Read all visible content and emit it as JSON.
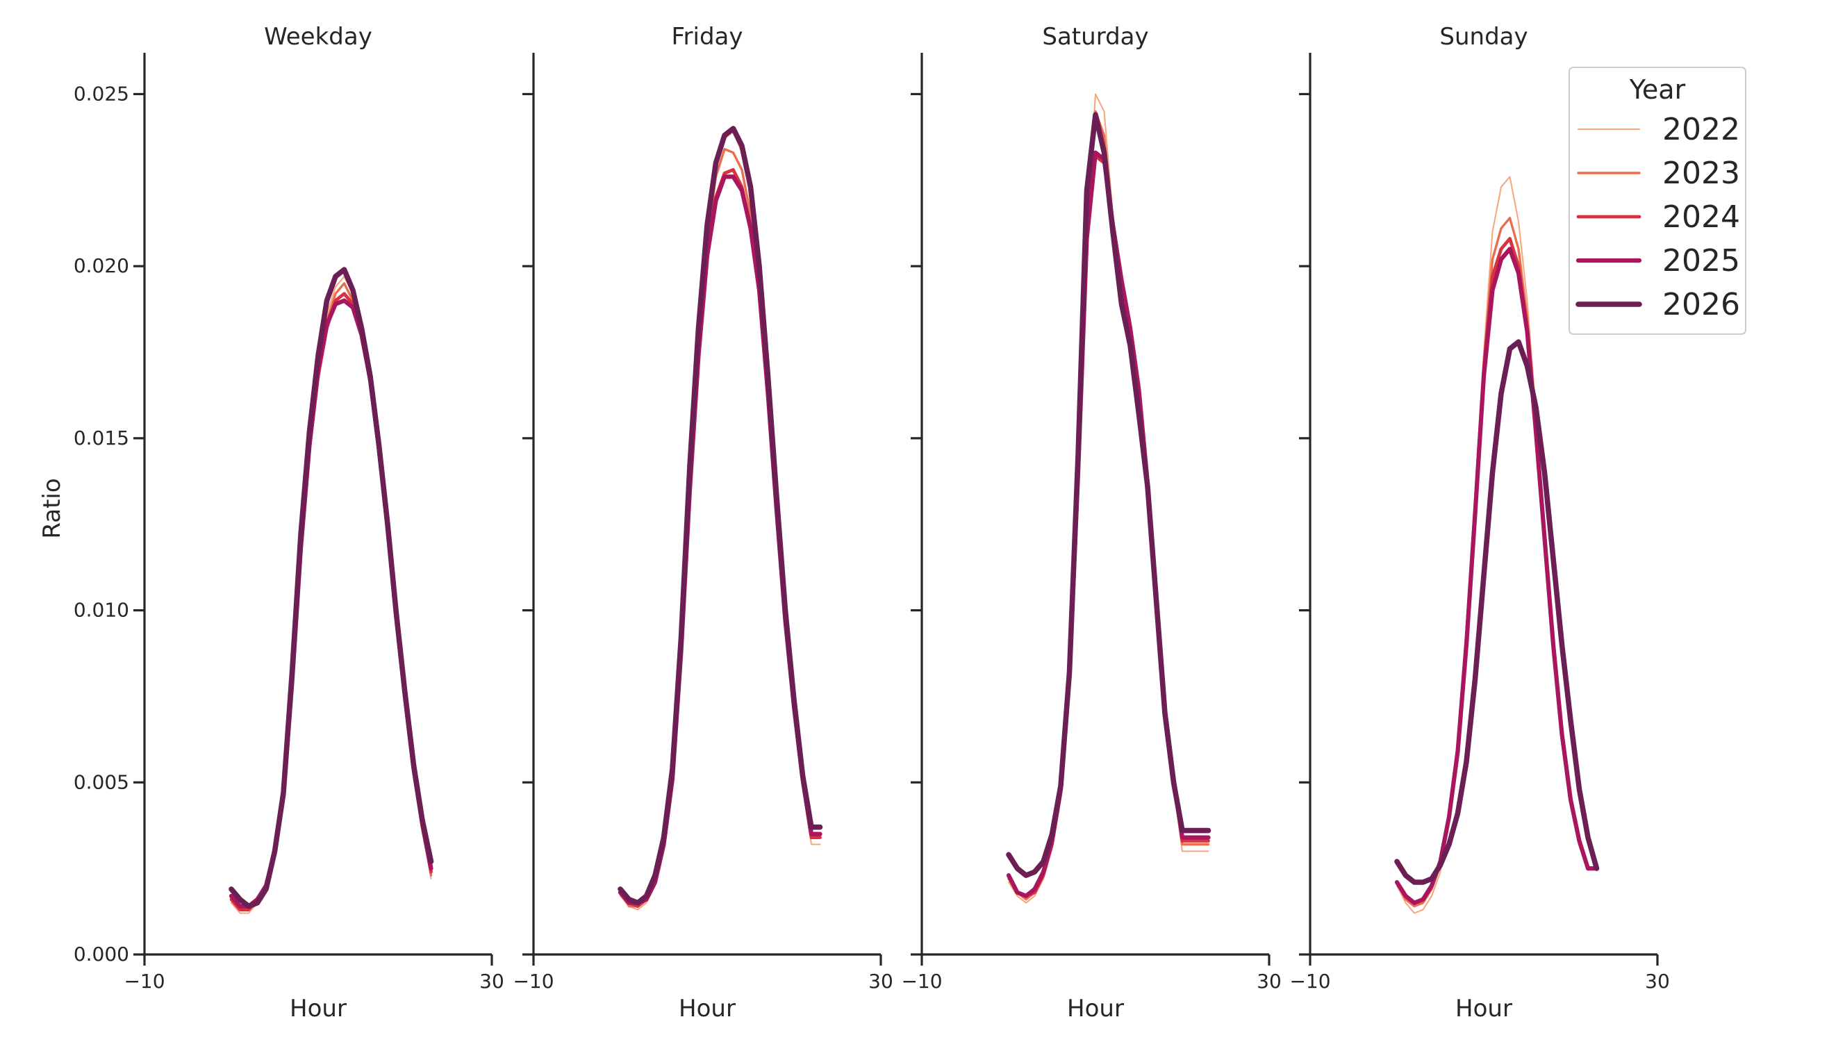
{
  "chart_data": {
    "type": "line",
    "ylabel": "Ratio",
    "xlabel": "Hour",
    "xlim": [
      -10,
      30
    ],
    "ylim": [
      0,
      0.0262
    ],
    "xticks": [
      "−10",
      "30"
    ],
    "yticks": [
      "0.000",
      "0.005",
      "0.010",
      "0.015",
      "0.020",
      "0.025"
    ],
    "legend": {
      "title": "Year",
      "placement": "top-right of last panel"
    },
    "series_styles": [
      {
        "name": "2022",
        "color": "#f6a47c"
      },
      {
        "name": "2023",
        "color": "#ec6d4b"
      },
      {
        "name": "2024",
        "color": "#d9323f"
      },
      {
        "name": "2025",
        "color": "#a9165e"
      },
      {
        "name": "2026",
        "color": "#6b1f54"
      }
    ],
    "x": [
      0,
      1,
      2,
      3,
      4,
      5,
      6,
      7,
      8,
      9,
      10,
      11,
      12,
      13,
      14,
      15,
      16,
      17,
      18,
      19,
      20,
      21,
      22,
      23
    ],
    "panels": [
      {
        "title": "Weekday",
        "series": [
          {
            "name": "2022",
            "values": [
              0.0015,
              0.0012,
              0.0012,
              0.0015,
              0.002,
              0.003,
              0.0047,
              0.008,
              0.012,
              0.015,
              0.0172,
              0.0186,
              0.0194,
              0.0197,
              0.0192,
              0.0182,
              0.0168,
              0.0148,
              0.0125,
              0.0098,
              0.0075,
              0.0053,
              0.0037,
              0.0022
            ]
          },
          {
            "name": "2023",
            "values": [
              0.0016,
              0.0013,
              0.0013,
              0.0016,
              0.002,
              0.0031,
              0.0047,
              0.0079,
              0.0118,
              0.0148,
              0.017,
              0.0184,
              0.0192,
              0.0195,
              0.019,
              0.0181,
              0.0167,
              0.0147,
              0.0124,
              0.0097,
              0.0074,
              0.0053,
              0.0037,
              0.0023
            ]
          },
          {
            "name": "2024",
            "values": [
              0.0016,
              0.0013,
              0.0013,
              0.0016,
              0.002,
              0.003,
              0.0046,
              0.0078,
              0.0117,
              0.0147,
              0.0168,
              0.0182,
              0.019,
              0.0192,
              0.0189,
              0.018,
              0.0166,
              0.0146,
              0.0123,
              0.0097,
              0.0074,
              0.0053,
              0.0037,
              0.0024
            ]
          },
          {
            "name": "2025",
            "values": [
              0.0017,
              0.0014,
              0.0014,
              0.0016,
              0.002,
              0.003,
              0.0046,
              0.0079,
              0.0118,
              0.0148,
              0.017,
              0.0183,
              0.0189,
              0.019,
              0.0188,
              0.018,
              0.0167,
              0.0147,
              0.0124,
              0.0098,
              0.0075,
              0.0054,
              0.0038,
              0.0025
            ]
          },
          {
            "name": "2026",
            "values": [
              0.0019,
              0.0016,
              0.0014,
              0.0015,
              0.0019,
              0.003,
              0.0047,
              0.0082,
              0.0122,
              0.0152,
              0.0174,
              0.019,
              0.0197,
              0.0199,
              0.0193,
              0.0182,
              0.0168,
              0.0148,
              0.0125,
              0.0099,
              0.0076,
              0.0055,
              0.0039,
              0.0027
            ]
          }
        ]
      },
      {
        "title": "Friday",
        "series": [
          {
            "name": "2022",
            "values": [
              0.0017,
              0.0014,
              0.0013,
              0.0015,
              0.002,
              0.0032,
              0.0052,
              0.009,
              0.014,
              0.018,
              0.021,
              0.0228,
              0.0237,
              0.0239,
              0.0233,
              0.022,
              0.0198,
              0.0165,
              0.013,
              0.0098,
              0.0072,
              0.005,
              0.0032,
              0.0032
            ]
          },
          {
            "name": "2023",
            "values": [
              0.0018,
              0.0014,
              0.0014,
              0.0016,
              0.0021,
              0.0032,
              0.0051,
              0.0089,
              0.0138,
              0.0178,
              0.0208,
              0.0226,
              0.0234,
              0.0233,
              0.0228,
              0.0215,
              0.0195,
              0.0163,
              0.0129,
              0.0097,
              0.0072,
              0.005,
              0.0034,
              0.0034
            ]
          },
          {
            "name": "2024",
            "values": [
              0.0018,
              0.0015,
              0.0014,
              0.0016,
              0.0021,
              0.0032,
              0.0051,
              0.0088,
              0.0136,
              0.0175,
              0.0205,
              0.022,
              0.0227,
              0.0228,
              0.0223,
              0.0211,
              0.0193,
              0.0162,
              0.0128,
              0.0096,
              0.0071,
              0.005,
              0.0034,
              0.0034
            ]
          },
          {
            "name": "2025",
            "values": [
              0.0018,
              0.0015,
              0.0015,
              0.0016,
              0.0021,
              0.0032,
              0.0051,
              0.0088,
              0.0135,
              0.0174,
              0.0203,
              0.0219,
              0.0226,
              0.0226,
              0.0222,
              0.0211,
              0.0193,
              0.0163,
              0.0129,
              0.0097,
              0.0072,
              0.0051,
              0.0035,
              0.0035
            ]
          },
          {
            "name": "2026",
            "values": [
              0.0019,
              0.0016,
              0.0015,
              0.0017,
              0.0023,
              0.0034,
              0.0054,
              0.0092,
              0.0142,
              0.0182,
              0.0212,
              0.023,
              0.0238,
              0.024,
              0.0235,
              0.0223,
              0.02,
              0.0168,
              0.0133,
              0.01,
              0.0074,
              0.0052,
              0.0037,
              0.0037
            ]
          }
        ]
      },
      {
        "title": "Saturday",
        "series": [
          {
            "name": "2022",
            "values": [
              0.0021,
              0.0017,
              0.0015,
              0.0017,
              0.0022,
              0.0031,
              0.0046,
              0.008,
              0.014,
              0.021,
              0.025,
              0.0245,
              0.0215,
              0.0195,
              0.018,
              0.016,
              0.0135,
              0.01,
              0.0068,
              0.0048,
              0.003,
              0.003,
              0.003,
              0.003
            ]
          },
          {
            "name": "2023",
            "values": [
              0.0022,
              0.0018,
              0.0016,
              0.0018,
              0.0023,
              0.0032,
              0.0047,
              0.008,
              0.014,
              0.021,
              0.0245,
              0.0238,
              0.0213,
              0.0195,
              0.0181,
              0.0162,
              0.0136,
              0.0102,
              0.007,
              0.005,
              0.0032,
              0.0032,
              0.0032,
              0.0032
            ]
          },
          {
            "name": "2024",
            "values": [
              0.0023,
              0.0018,
              0.0017,
              0.0018,
              0.0023,
              0.0032,
              0.0047,
              0.008,
              0.014,
              0.0208,
              0.0232,
              0.023,
              0.0212,
              0.0196,
              0.0182,
              0.0164,
              0.0137,
              0.0103,
              0.0071,
              0.0051,
              0.0033,
              0.0033,
              0.0033,
              0.0033
            ]
          },
          {
            "name": "2025",
            "values": [
              0.0023,
              0.0018,
              0.0017,
              0.0019,
              0.0024,
              0.0033,
              0.0048,
              0.0081,
              0.014,
              0.0208,
              0.0233,
              0.0231,
              0.0212,
              0.0196,
              0.0182,
              0.0164,
              0.0137,
              0.0103,
              0.0071,
              0.0051,
              0.0034,
              0.0034,
              0.0034,
              0.0034
            ]
          },
          {
            "name": "2026",
            "values": [
              0.0029,
              0.0025,
              0.0023,
              0.0024,
              0.0027,
              0.0035,
              0.0049,
              0.0082,
              0.0145,
              0.0222,
              0.0244,
              0.0233,
              0.021,
              0.0189,
              0.0177,
              0.0157,
              0.0136,
              0.0103,
              0.007,
              0.005,
              0.0036,
              0.0036,
              0.0036,
              0.0036
            ]
          }
        ]
      },
      {
        "title": "Sunday",
        "series": [
          {
            "name": "2022",
            "values": [
              0.002,
              0.0015,
              0.0012,
              0.0013,
              0.0017,
              0.0024,
              0.0038,
              0.0058,
              0.009,
              0.013,
              0.0175,
              0.021,
              0.0223,
              0.0226,
              0.0213,
              0.019,
              0.0158,
              0.0125,
              0.0093,
              0.0066,
              0.0045,
              0.0032,
              0.0025,
              0.0025
            ]
          },
          {
            "name": "2023",
            "values": [
              0.0021,
              0.0016,
              0.0014,
              0.0015,
              0.0019,
              0.0026,
              0.004,
              0.006,
              0.0092,
              0.013,
              0.0172,
              0.0202,
              0.0211,
              0.0214,
              0.0205,
              0.0185,
              0.0155,
              0.0123,
              0.0091,
              0.0065,
              0.0045,
              0.0032,
              0.0025,
              0.0025
            ]
          },
          {
            "name": "2024",
            "values": [
              0.0021,
              0.0017,
              0.0015,
              0.0016,
              0.002,
              0.0027,
              0.004,
              0.006,
              0.0092,
              0.013,
              0.017,
              0.0197,
              0.0205,
              0.0208,
              0.02,
              0.0182,
              0.0153,
              0.0121,
              0.009,
              0.0064,
              0.0045,
              0.0033,
              0.0025,
              0.0025
            ]
          },
          {
            "name": "2025",
            "values": [
              0.0021,
              0.0017,
              0.0015,
              0.0016,
              0.002,
              0.0027,
              0.004,
              0.0059,
              0.009,
              0.0128,
              0.0168,
              0.0193,
              0.0202,
              0.0205,
              0.0198,
              0.0181,
              0.0152,
              0.0121,
              0.009,
              0.0064,
              0.0045,
              0.0033,
              0.0025,
              0.0025
            ]
          },
          {
            "name": "2026",
            "values": [
              0.0027,
              0.0023,
              0.0021,
              0.0021,
              0.0022,
              0.0026,
              0.0032,
              0.0041,
              0.0056,
              0.008,
              0.011,
              0.014,
              0.0163,
              0.0176,
              0.0178,
              0.0171,
              0.0159,
              0.014,
              0.0115,
              0.009,
              0.0068,
              0.0048,
              0.0034,
              0.0025
            ]
          }
        ]
      }
    ]
  }
}
